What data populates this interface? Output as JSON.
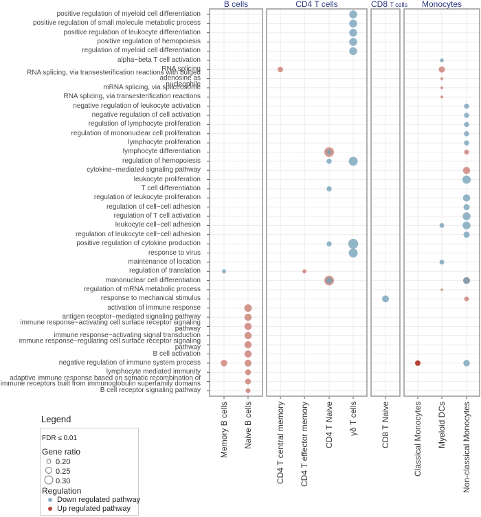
{
  "chart_data": {
    "type": "scatter",
    "facets": [
      {
        "title": "B cells",
        "columns": [
          "Memory B cells",
          "Naive B cells"
        ]
      },
      {
        "title": "CD4 T cells",
        "columns": [
          "CD4 T central memory",
          "CD4 T effector memory",
          "CD4 T Naive",
          "γδ T cells"
        ]
      },
      {
        "title_main": "CD8",
        "title_small": "T cells",
        "columns": [
          "CD8 T Naive"
        ]
      },
      {
        "title": "Monocytes",
        "columns": [
          "Classical Monocytes",
          "Myeloid DCs",
          "Non-classical Monocytes"
        ]
      }
    ],
    "pathways": [
      "positive regulation of myeloid cell differentiation",
      "positive regulation of small molecule metabolic process",
      "positive regulation of leukocyte differentiation",
      "positive regulation of hemopoiesis",
      "regulation of myeloid cell differentiation",
      "alpha−beta T cell activation",
      "RNA splicing",
      "RNA splicing, via transesterification reactions with bulged adenosine as\nnucleophile",
      "mRNA splicing, via spliceosome",
      "RNA splicing, via transesterification reactions",
      "negative regulation of leukocyte activation",
      "negative regulation of cell activation",
      "regulation of lymphocyte proliferation",
      "regulation of mononuclear cell proliferation",
      "lymphocyte proliferation",
      "lymphocyte differentiation",
      "regulation of hemopoiesis",
      "cytokine−mediated signaling pathway",
      "leukocyte proliferation",
      "T cell differentiation",
      "regulation of leukocyte proliferation",
      "regulation of cell−cell adhesion",
      "regulation of T cell activation",
      "leukocyte cell−cell adhesion",
      "regulation of leukocyte cell−cell adhesion",
      "positive regulation of cytokine production",
      "response to virus",
      "maintenance of location",
      "regulation of translation",
      "mononuclear cell differentiation",
      "regulation of mRNA metabolic process",
      "response to mechanical stimulus",
      "activation of immune response",
      "antigen receptor−mediated signaling pathway",
      "immune response−activating cell surface receptor signaling pathway",
      "immune response−activating signal transduction",
      "immune response−regulating cell surface receptor signaling pathway",
      "B cell activation",
      "negative regulation of immune system process",
      "lymphocyte mediated immunity",
      "adaptive immune response based on somatic recombination of\nimmune receptors built from immunoglobulin superfamily domains",
      "B cell receptor signaling pathway"
    ],
    "points": [
      {
        "pathway": 0,
        "cell": "γδ T cells",
        "reg": "down",
        "ratio": 0.27
      },
      {
        "pathway": 1,
        "cell": "γδ T cells",
        "reg": "down",
        "ratio": 0.27
      },
      {
        "pathway": 2,
        "cell": "γδ T cells",
        "reg": "down",
        "ratio": 0.27
      },
      {
        "pathway": 3,
        "cell": "γδ T cells",
        "reg": "down",
        "ratio": 0.27
      },
      {
        "pathway": 4,
        "cell": "γδ T cells",
        "reg": "down",
        "ratio": 0.27
      },
      {
        "pathway": 5,
        "cell": "Myeloid DCs",
        "reg": "down",
        "ratio": 0.15
      },
      {
        "pathway": 6,
        "cell": "CD4 T central memory",
        "reg": "up",
        "ratio": 0.2
      },
      {
        "pathway": 6,
        "cell": "Myeloid DCs",
        "reg": "up",
        "ratio": 0.22
      },
      {
        "pathway": 7,
        "cell": "Myeloid DCs",
        "reg": "up",
        "ratio": 0.12
      },
      {
        "pathway": 8,
        "cell": "Myeloid DCs",
        "reg": "up",
        "ratio": 0.12
      },
      {
        "pathway": 9,
        "cell": "Myeloid DCs",
        "reg": "up",
        "ratio": 0.12
      },
      {
        "pathway": 10,
        "cell": "Non-classical Monocytes",
        "reg": "down",
        "ratio": 0.19
      },
      {
        "pathway": 11,
        "cell": "Non-classical Monocytes",
        "reg": "down",
        "ratio": 0.19
      },
      {
        "pathway": 12,
        "cell": "Non-classical Monocytes",
        "reg": "down",
        "ratio": 0.19
      },
      {
        "pathway": 13,
        "cell": "Non-classical Monocytes",
        "reg": "down",
        "ratio": 0.19
      },
      {
        "pathway": 14,
        "cell": "Non-classical Monocytes",
        "reg": "down",
        "ratio": 0.19
      },
      {
        "pathway": 15,
        "cell": "CD4 T Naive",
        "reg": "up",
        "ratio": 0.32
      },
      {
        "pathway": 15,
        "cell": "CD4 T Naive",
        "reg": "down",
        "ratio": 0.18
      },
      {
        "pathway": 15,
        "cell": "Non-classical Monocytes",
        "reg": "up",
        "ratio": 0.18
      },
      {
        "pathway": 16,
        "cell": "CD4 T Naive",
        "reg": "down",
        "ratio": 0.19
      },
      {
        "pathway": 16,
        "cell": "γδ T cells",
        "reg": "down",
        "ratio": 0.3
      },
      {
        "pathway": 17,
        "cell": "Non-classical Monocytes",
        "reg": "up",
        "ratio": 0.25
      },
      {
        "pathway": 18,
        "cell": "Non-classical Monocytes",
        "reg": "down",
        "ratio": 0.28
      },
      {
        "pathway": 19,
        "cell": "CD4 T Naive",
        "reg": "down",
        "ratio": 0.19
      },
      {
        "pathway": 20,
        "cell": "Non-classical Monocytes",
        "reg": "down",
        "ratio": 0.25
      },
      {
        "pathway": 21,
        "cell": "Non-classical Monocytes",
        "reg": "down",
        "ratio": 0.22
      },
      {
        "pathway": 22,
        "cell": "Non-classical Monocytes",
        "reg": "down",
        "ratio": 0.27
      },
      {
        "pathway": 23,
        "cell": "Myeloid DCs",
        "reg": "down",
        "ratio": 0.18
      },
      {
        "pathway": 23,
        "cell": "Non-classical Monocytes",
        "reg": "down",
        "ratio": 0.27
      },
      {
        "pathway": 24,
        "cell": "Non-classical Monocytes",
        "reg": "down",
        "ratio": 0.22
      },
      {
        "pathway": 25,
        "cell": "CD4 T Naive",
        "reg": "down",
        "ratio": 0.19
      },
      {
        "pathway": 25,
        "cell": "γδ T cells",
        "reg": "down",
        "ratio": 0.33
      },
      {
        "pathway": 26,
        "cell": "γδ T cells",
        "reg": "down",
        "ratio": 0.3
      },
      {
        "pathway": 27,
        "cell": "Myeloid DCs",
        "reg": "down",
        "ratio": 0.18
      },
      {
        "pathway": 28,
        "cell": "Memory B cells",
        "reg": "down",
        "ratio": 0.16
      },
      {
        "pathway": 28,
        "cell": "CD4 T effector memory",
        "reg": "up",
        "ratio": 0.16
      },
      {
        "pathway": 29,
        "cell": "CD4 T Naive",
        "reg": "up",
        "ratio": 0.32
      },
      {
        "pathway": 29,
        "cell": "CD4 T Naive",
        "reg": "down",
        "ratio": 0.22
      },
      {
        "pathway": 29,
        "cell": "Non-classical Monocytes",
        "reg": "up",
        "ratio": 0.24
      },
      {
        "pathway": 29,
        "cell": "Non-classical Monocytes",
        "reg": "down",
        "ratio": 0.24
      },
      {
        "pathway": 30,
        "cell": "Myeloid DCs",
        "reg": "up",
        "ratio": 0.11
      },
      {
        "pathway": 31,
        "cell": "CD8 T Naive",
        "reg": "down",
        "ratio": 0.24
      },
      {
        "pathway": 31,
        "cell": "Non-classical Monocytes",
        "reg": "up",
        "ratio": 0.18
      },
      {
        "pathway": 32,
        "cell": "Naive B cells",
        "reg": "up",
        "ratio": 0.26
      },
      {
        "pathway": 33,
        "cell": "Naive B cells",
        "reg": "up",
        "ratio": 0.25
      },
      {
        "pathway": 34,
        "cell": "Naive B cells",
        "reg": "up",
        "ratio": 0.25
      },
      {
        "pathway": 35,
        "cell": "Naive B cells",
        "reg": "up",
        "ratio": 0.25
      },
      {
        "pathway": 36,
        "cell": "Naive B cells",
        "reg": "up",
        "ratio": 0.25
      },
      {
        "pathway": 37,
        "cell": "Naive B cells",
        "reg": "up",
        "ratio": 0.25
      },
      {
        "pathway": 38,
        "cell": "Memory B cells",
        "reg": "up",
        "ratio": 0.23
      },
      {
        "pathway": 38,
        "cell": "Naive B cells",
        "reg": "up",
        "ratio": 0.24
      },
      {
        "pathway": 38,
        "cell": "Classical Monocytes",
        "reg": "up",
        "ratio": 0.2
      },
      {
        "pathway": 38,
        "cell": "Non-classical Monocytes",
        "reg": "down",
        "ratio": 0.23
      },
      {
        "pathway": 39,
        "cell": "Naive B cells",
        "reg": "up",
        "ratio": 0.21
      },
      {
        "pathway": 40,
        "cell": "Naive B cells",
        "reg": "up",
        "ratio": 0.21
      },
      {
        "pathway": 41,
        "cell": "Naive B cells",
        "reg": "up",
        "ratio": 0.18
      }
    ],
    "grid": true,
    "legend_position": "bottom-left"
  },
  "legend": {
    "title": "Legend",
    "fdr": "FDR  ≤ 0.01",
    "size_title": "Gene ratio",
    "sizes": [
      "0.20",
      "0.25",
      "0.30"
    ],
    "color_title": "Regulation",
    "down_label": "Down regulated pathway",
    "up_label": "Up regulated pathway"
  },
  "colors": {
    "down": "#6f9db5",
    "up": "#c7766a",
    "facet_title": "#2b3680"
  }
}
